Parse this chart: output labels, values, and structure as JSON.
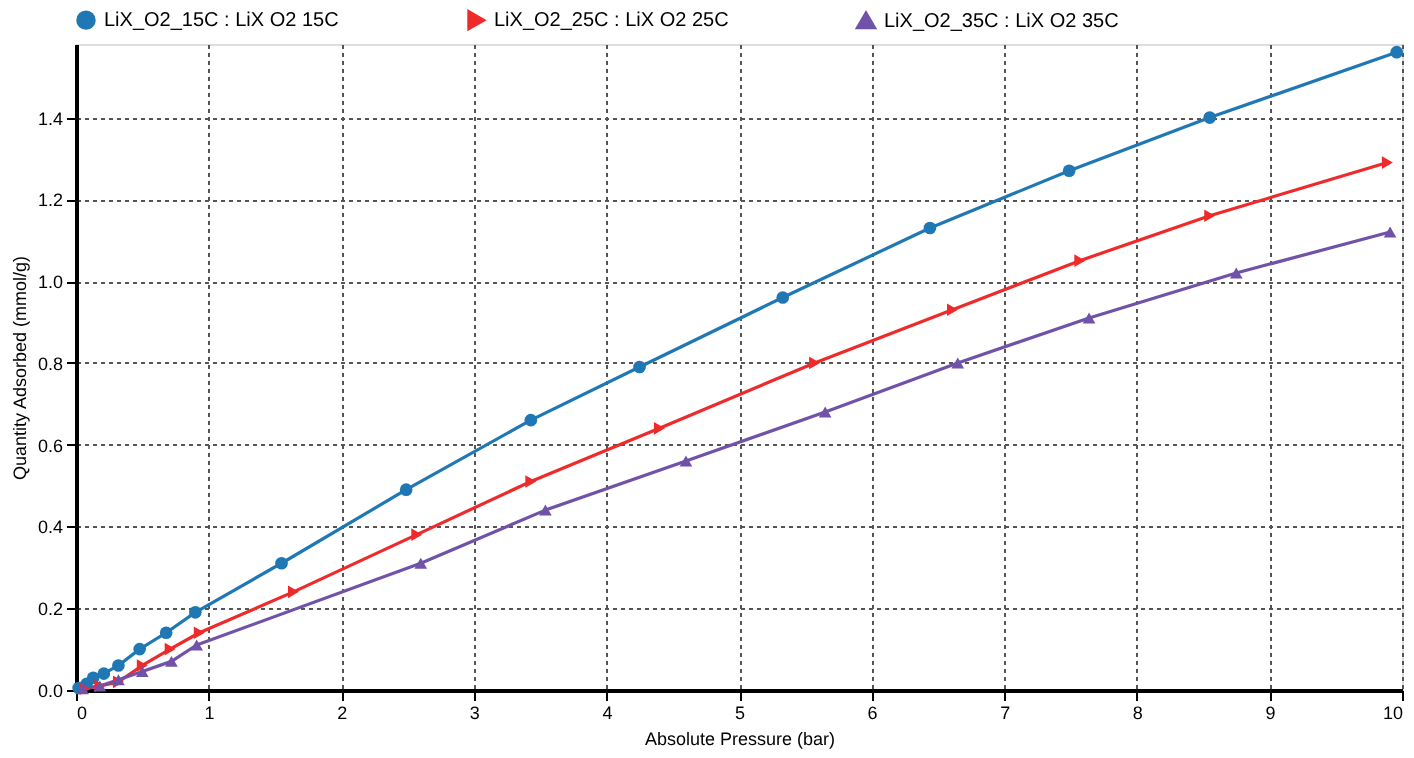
{
  "chart_data": {
    "type": "line",
    "xlabel": "Absolute Pressure (bar)",
    "ylabel": "Quantity Adsorbed (mmol/g)",
    "xlim": [
      0,
      10
    ],
    "ylim": [
      0,
      1.58
    ],
    "xticks": [
      0,
      1,
      2,
      3,
      4,
      5,
      6,
      7,
      8,
      9,
      10
    ],
    "yticks": [
      {
        "value": 0,
        "label": "0.0"
      },
      {
        "value": 0.2,
        "label": "0.2"
      },
      {
        "value": 0.4,
        "label": "0.4"
      },
      {
        "value": 0.6,
        "label": "0.6"
      },
      {
        "value": 0.8,
        "label": "0.8"
      },
      {
        "value": 1.0,
        "label": "1.0"
      },
      {
        "value": 1.2,
        "label": "1.2"
      },
      {
        "value": 1.4,
        "label": "1.4"
      }
    ],
    "grid": true,
    "legend": "top",
    "line_style": "solid",
    "series": [
      {
        "name": "LiX_O2_15C : LiX O2 15C",
        "color": "#1f77b4",
        "marker": "circle",
        "x": [
          0.02,
          0.08,
          0.13,
          0.21,
          0.32,
          0.48,
          0.68,
          0.9,
          1.55,
          2.49,
          3.43,
          4.25,
          5.33,
          6.44,
          7.49,
          8.55,
          9.96
        ],
        "values": [
          0.005,
          0.015,
          0.03,
          0.04,
          0.06,
          0.1,
          0.14,
          0.19,
          0.31,
          0.49,
          0.66,
          0.79,
          0.96,
          1.13,
          1.27,
          1.4,
          1.56
        ]
      },
      {
        "name": "LiX_O2_25C : LiX O2 25C",
        "color": "#ee2a2a",
        "marker": "triangle-right",
        "x": [
          0.07,
          0.18,
          0.32,
          0.5,
          0.71,
          0.93,
          1.64,
          2.57,
          3.43,
          4.4,
          5.57,
          6.61,
          7.57,
          8.55,
          9.89
        ],
        "values": [
          0.003,
          0.01,
          0.02,
          0.06,
          0.1,
          0.14,
          0.24,
          0.38,
          0.51,
          0.64,
          0.8,
          0.93,
          1.05,
          1.16,
          1.29
        ]
      },
      {
        "name": "LiX_O2_35C : LiX O2 35C",
        "color": "#7052a8",
        "marker": "triangle",
        "x": [
          0.05,
          0.18,
          0.32,
          0.5,
          0.72,
          0.91,
          2.6,
          3.54,
          4.6,
          5.65,
          6.65,
          7.64,
          8.75,
          9.91
        ],
        "values": [
          0.003,
          0.01,
          0.025,
          0.045,
          0.07,
          0.11,
          0.31,
          0.44,
          0.56,
          0.68,
          0.8,
          0.91,
          1.02,
          1.12
        ]
      }
    ]
  }
}
